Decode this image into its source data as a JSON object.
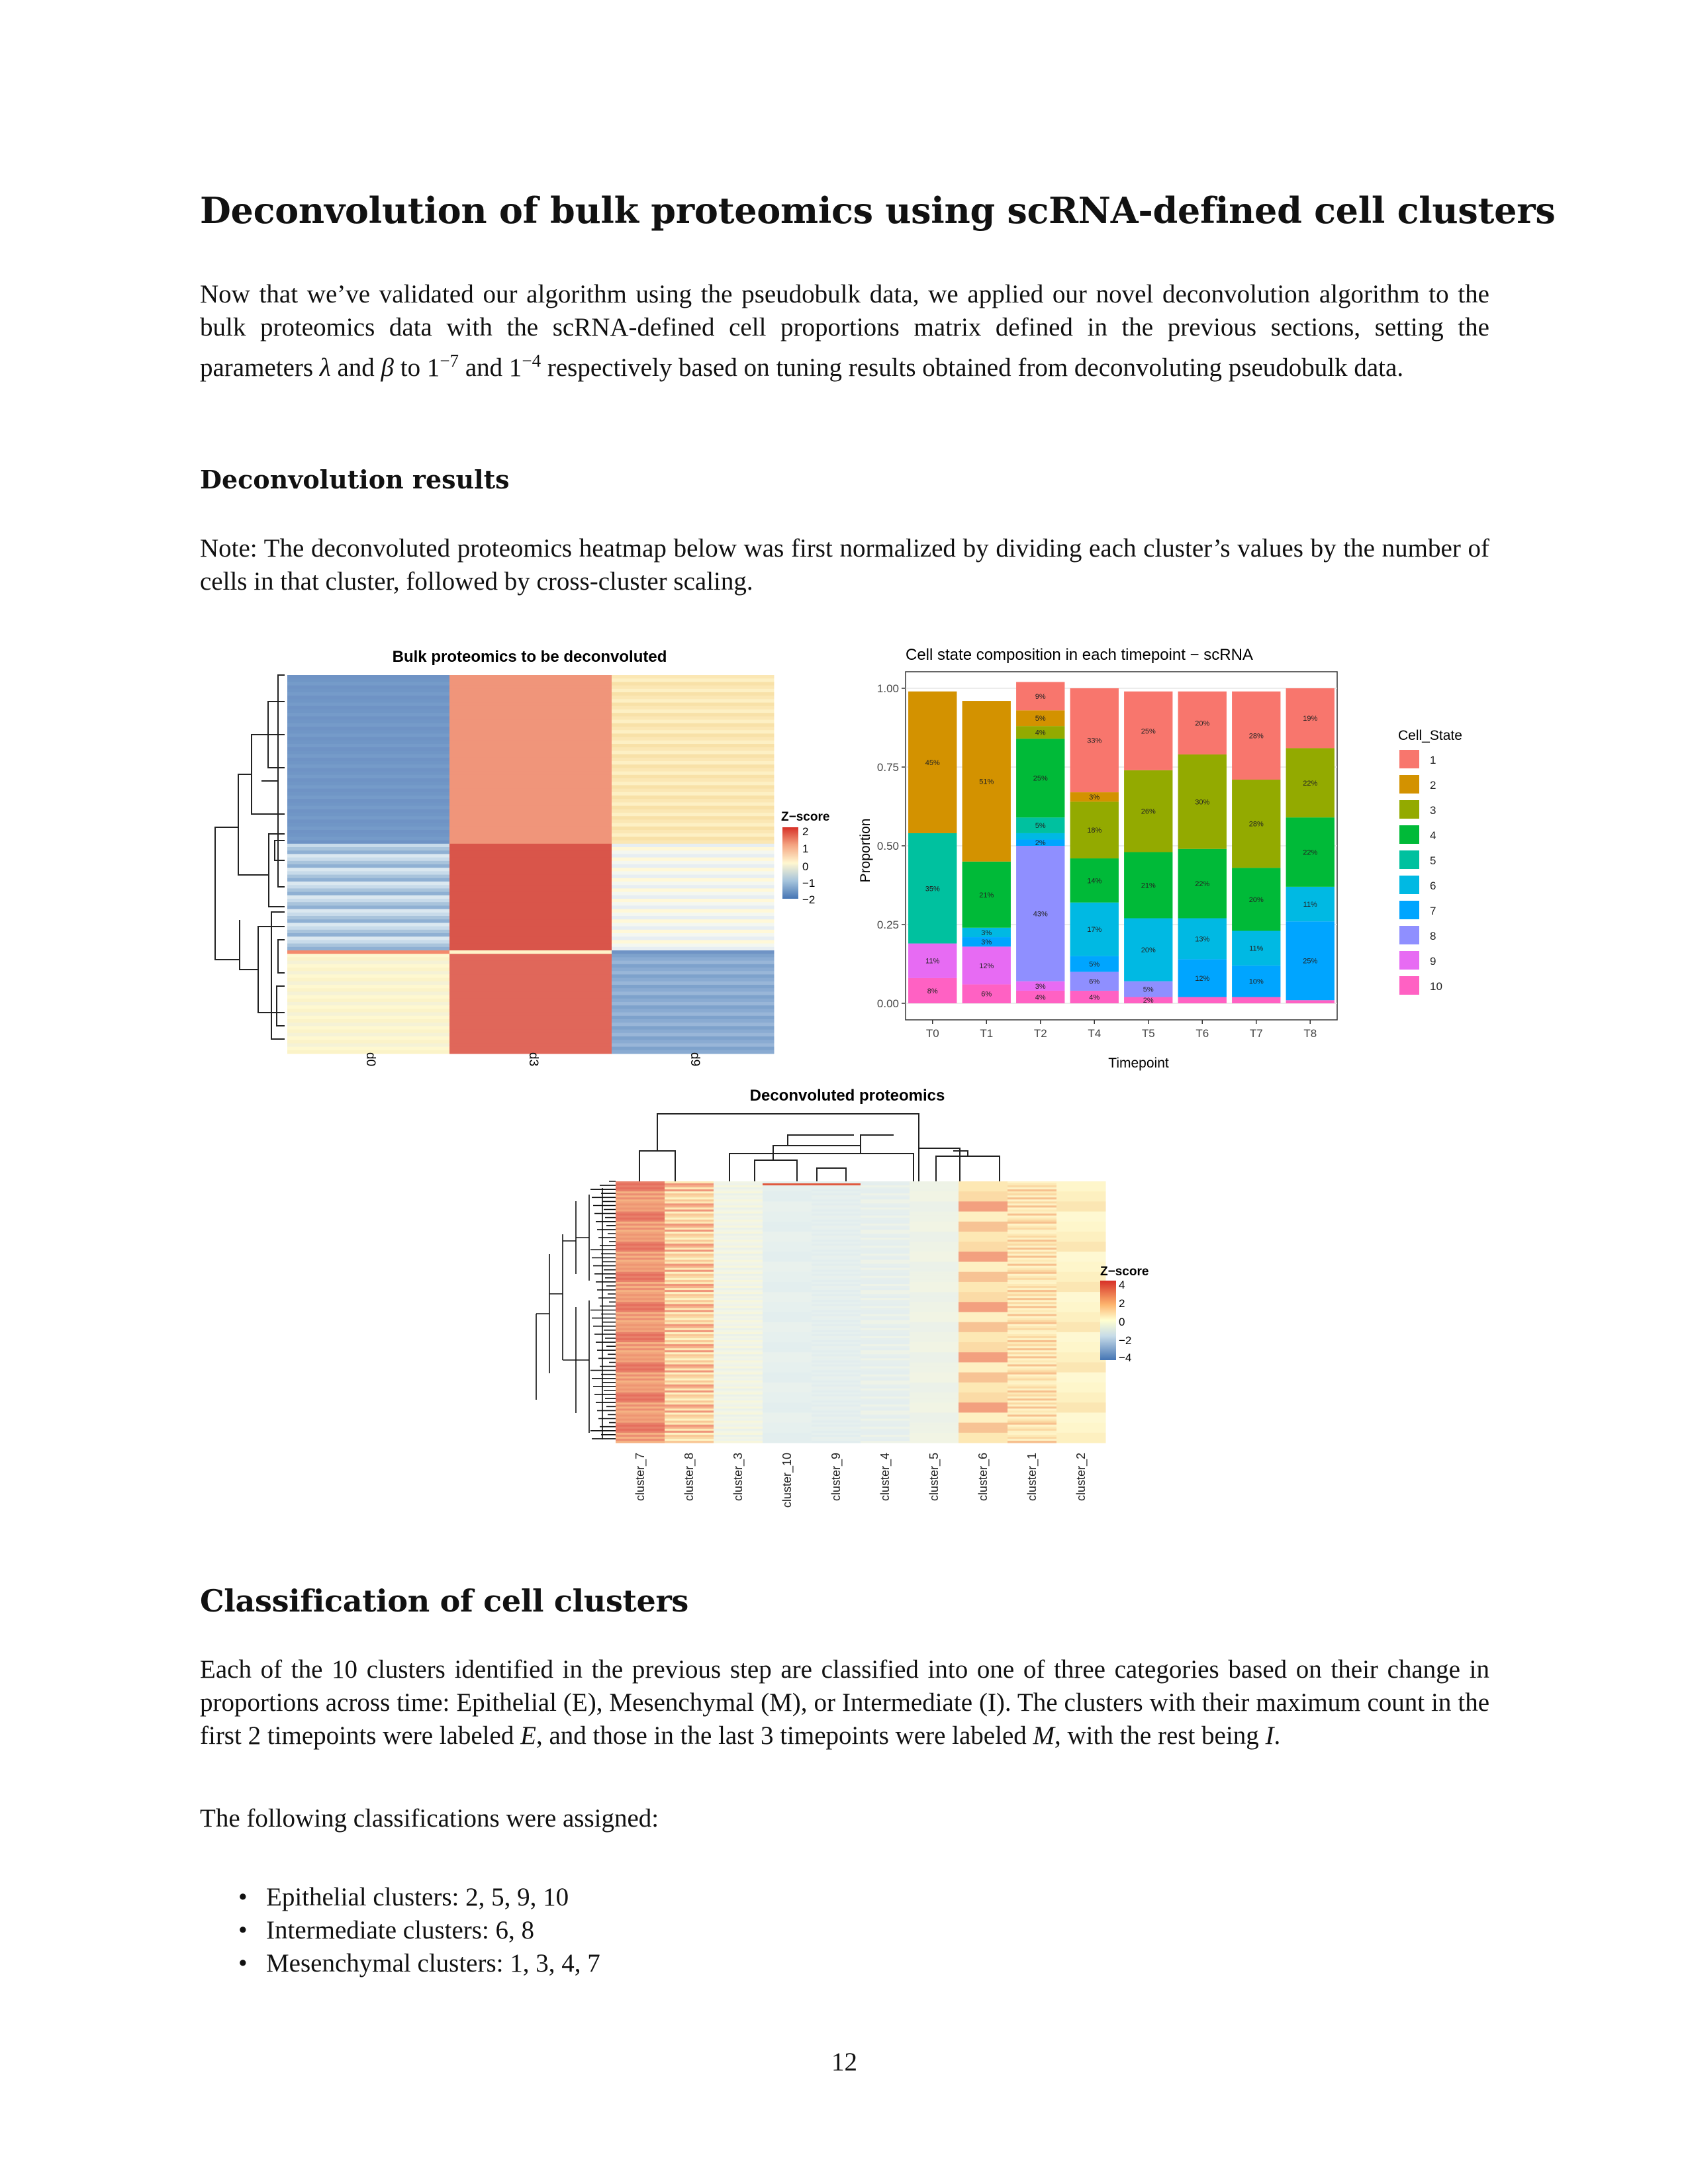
{
  "section1": {
    "title": "Deconvolution of bulk proteomics using scRNA-defined cell clusters",
    "para_part1": "Now that we’ve validated our algorithm using the pseudobulk data, we applied our novel deconvolution algorithm to the bulk proteomics data with the scRNA-defined cell proportions matrix defined in the previous sections, setting the parameters ",
    "lambda": "λ",
    "para_and": " and ",
    "beta": "β",
    "para_to": " to ",
    "val1_base": "1",
    "val1_exp": "−7",
    "para_and2": " and ",
    "val2_base": "1",
    "val2_exp": "−4",
    "para_part2": " respectively based on tuning results obtained from deconvoluting pseudobulk data."
  },
  "subsection1": {
    "title": "Deconvolution results",
    "note": "Note: The deconvoluted proteomics heatmap below was first normalized by dividing each cluster’s values by the number of cells in that cluster, followed by cross-cluster scaling."
  },
  "figures": {
    "heatmap1": {
      "title": "Bulk proteomics to be deconvoluted",
      "legend_title": "Z−score",
      "legend_ticks": [
        "2",
        "1",
        "0",
        "−1",
        "−2"
      ],
      "columns": [
        "d0",
        "d3",
        "d9"
      ]
    },
    "heatmap2": {
      "title": "Deconvoluted proteomics",
      "legend_title": "Z−score",
      "legend_ticks": [
        "4",
        "2",
        "0",
        "−2",
        "−4"
      ],
      "columns": [
        "cluster_7",
        "cluster_8",
        "cluster_3",
        "cluster_10",
        "cluster_9",
        "cluster_4",
        "cluster_5",
        "cluster_6",
        "cluster_1",
        "cluster_2"
      ]
    }
  },
  "chart_data": {
    "type": "bar",
    "stacked": true,
    "title": "Cell state composition in each timepoint − scRNA",
    "xlabel": "Timepoint",
    "ylabel": "Proportion",
    "ylim": [
      0,
      1
    ],
    "yticks": [
      "0.00",
      "0.25",
      "0.50",
      "0.75",
      "1.00"
    ],
    "legend_title": "Cell_State",
    "legend_position": "right",
    "categories": [
      "T0",
      "T1",
      "T2",
      "T4",
      "T5",
      "T6",
      "T7",
      "T8"
    ],
    "colors": {
      "1": "#F8766D",
      "2": "#D39200",
      "3": "#93AA00",
      "4": "#00BA38",
      "5": "#00C19F",
      "6": "#00B9E3",
      "7": "#00A5FF",
      "8": "#8F8FFF",
      "9": "#E76BF3",
      "10": "#FF61C3"
    },
    "series": [
      {
        "name": "10",
        "values": [
          0.08,
          0.06,
          0.04,
          0.04,
          0.02,
          0.02,
          0.02,
          0.01
        ]
      },
      {
        "name": "9",
        "values": [
          0.11,
          0.12,
          0.03,
          0.0,
          0.0,
          0.0,
          0.0,
          0.0
        ]
      },
      {
        "name": "8",
        "values": [
          0.0,
          0.0,
          0.43,
          0.06,
          0.05,
          0.0,
          0.0,
          0.0
        ]
      },
      {
        "name": "7",
        "values": [
          0.0,
          0.03,
          0.02,
          0.05,
          0.0,
          0.12,
          0.1,
          0.25
        ]
      },
      {
        "name": "6",
        "values": [
          0.0,
          0.03,
          0.02,
          0.17,
          0.2,
          0.13,
          0.11,
          0.11
        ]
      },
      {
        "name": "5",
        "values": [
          0.35,
          0.0,
          0.05,
          0.0,
          0.0,
          0.0,
          0.0,
          0.0
        ]
      },
      {
        "name": "4",
        "values": [
          0.0,
          0.21,
          0.25,
          0.14,
          0.21,
          0.22,
          0.2,
          0.22
        ]
      },
      {
        "name": "3",
        "values": [
          0.0,
          0.0,
          0.04,
          0.18,
          0.26,
          0.3,
          0.28,
          0.22
        ]
      },
      {
        "name": "2",
        "values": [
          0.45,
          0.51,
          0.05,
          0.03,
          0.0,
          0.0,
          0.0,
          0.0
        ]
      },
      {
        "name": "1",
        "values": [
          0.0,
          0.0,
          0.09,
          0.33,
          0.25,
          0.2,
          0.28,
          0.19
        ]
      }
    ],
    "labels": {
      "10": [
        "8%",
        "6%",
        "4%",
        "4%",
        "2%",
        "",
        "",
        ""
      ],
      "9": [
        "11%",
        "12%",
        "3%",
        "",
        "",
        "",
        "",
        ""
      ],
      "8": [
        "",
        "",
        "43%",
        "6%",
        "5%",
        "",
        "",
        ""
      ],
      "7": [
        "",
        "3%",
        "2%",
        "5%",
        "",
        "12%",
        "10%",
        "25%"
      ],
      "6": [
        "",
        "3%",
        "",
        "17%",
        "20%",
        "13%",
        "11%",
        "11%"
      ],
      "5": [
        "35%",
        "",
        "5%",
        "",
        "",
        "",
        "",
        ""
      ],
      "4": [
        "",
        "21%",
        "25%",
        "14%",
        "21%",
        "22%",
        "20%",
        "22%"
      ],
      "3": [
        "",
        "",
        "4%",
        "18%",
        "26%",
        "30%",
        "28%",
        "22%"
      ],
      "2": [
        "45%",
        "51%",
        "5%",
        "3%",
        "",
        "",
        "",
        ""
      ],
      "1": [
        "",
        "",
        "9%",
        "33%",
        "25%",
        "20%",
        "28%",
        "19%"
      ]
    }
  },
  "section2": {
    "title": "Classification of cell clusters",
    "para1_a": "Each of the 10 clusters identified in the previous step are classified into one of three categories based on their change in proportions across time: Epithelial (E), Mesenchymal (M), or Intermediate (I). The clusters with their maximum count in the first 2 timepoints were labeled ",
    "e_label": "E",
    "para1_b": ", and those in the last 3 timepoints were labeled ",
    "m_label": "M",
    "para1_c": ", with the rest being ",
    "i_label": "I",
    "para1_d": ".",
    "para2": "The following classifications were assigned:",
    "items": [
      "Epithelial clusters: 2, 5, 9, 10",
      "Intermediate clusters: 6, 8",
      "Mesenchymal clusters: 1, 3, 4, 7"
    ]
  },
  "page_number": "12"
}
